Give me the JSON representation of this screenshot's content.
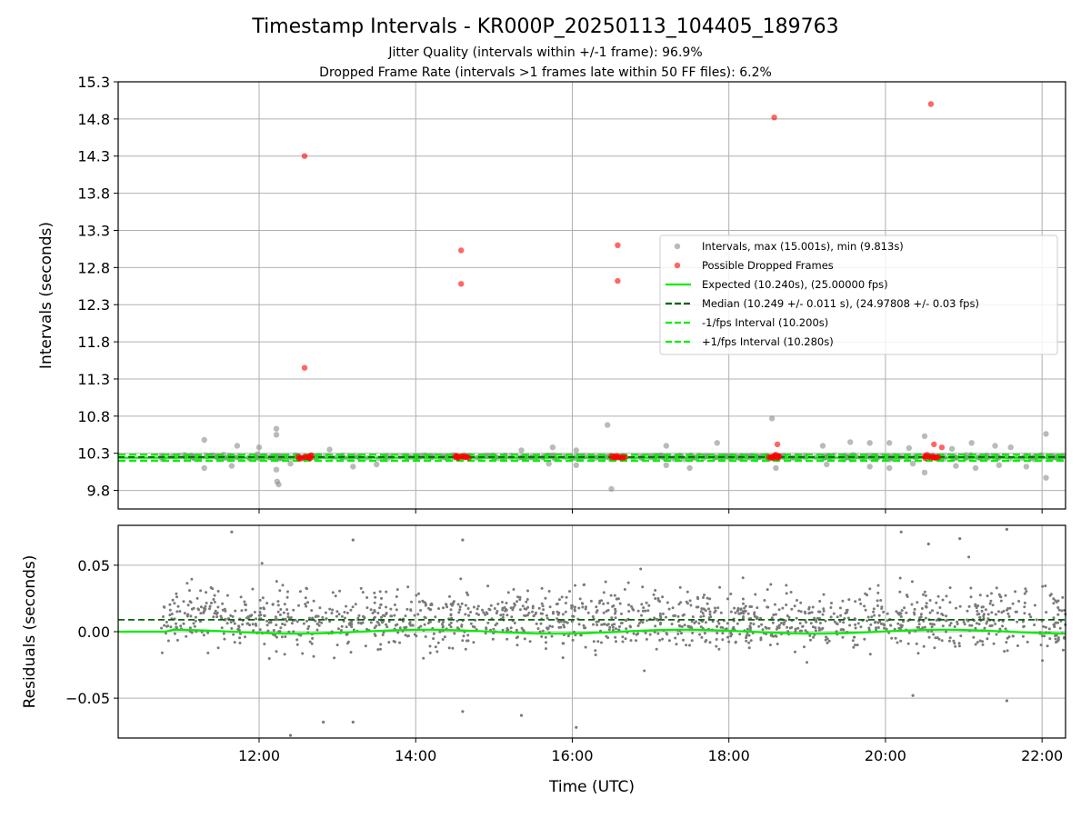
{
  "chart_data": [
    {
      "type": "scatter",
      "title": "Timestamp Intervals - KR000P_20250113_104405_189763",
      "subtitle_1": "Jitter Quality (intervals within +/-1 frame): 96.9%",
      "subtitle_2": "Dropped Frame Rate (intervals >1 frames late within 50 FF files): 6.2%",
      "ylabel": "Intervals (seconds)",
      "xlim_hours": [
        10.2,
        22.3
      ],
      "ylim": [
        9.55,
        15.3
      ],
      "yticks": [
        9.8,
        10.3,
        10.8,
        11.3,
        11.8,
        12.3,
        12.8,
        13.3,
        13.8,
        14.3,
        14.8,
        15.3
      ],
      "ytick_labels": [
        "9.8",
        "10.3",
        "10.8",
        "11.3",
        "11.8",
        "12.3",
        "12.8",
        "13.3",
        "13.8",
        "14.3",
        "14.8",
        "15.3"
      ],
      "grid": true,
      "legend_position": "center-right",
      "legend": [
        {
          "label": "Intervals, max (15.001s), min (9.813s)",
          "kind": "dot",
          "color": "#8c8c8c"
        },
        {
          "label": "Possible Dropped Frames",
          "kind": "dot",
          "color": "#ff0000"
        },
        {
          "label": "Expected (10.240s), (25.00000 fps)",
          "kind": "solid",
          "color": "#00ee00"
        },
        {
          "label": "Median (10.249 +/- 0.011 s), (24.97808 +/- 0.03 fps)",
          "kind": "dashed",
          "color": "#006400"
        },
        {
          "label": "-1/fps Interval (10.200s)",
          "kind": "dashed",
          "color": "#00ee00"
        },
        {
          "label": "+1/fps Interval (10.280s)",
          "kind": "dashed",
          "color": "#00ee00"
        }
      ],
      "lines": {
        "expected": 10.24,
        "median": 10.249,
        "minus_1fps": 10.2,
        "plus_1fps": 10.28
      },
      "data_start_hour": 10.75,
      "data_end_hour": 22.3,
      "dropped_frames": [
        {
          "x": 12.58,
          "y": 14.3
        },
        {
          "x": 12.58,
          "y": 11.45
        },
        {
          "x": 14.58,
          "y": 13.03
        },
        {
          "x": 14.58,
          "y": 12.58
        },
        {
          "x": 16.58,
          "y": 13.1
        },
        {
          "x": 16.58,
          "y": 12.62
        },
        {
          "x": 18.58,
          "y": 14.82
        },
        {
          "x": 18.62,
          "y": 10.42
        },
        {
          "x": 20.58,
          "y": 15.0
        },
        {
          "x": 20.62,
          "y": 10.42
        },
        {
          "x": 20.72,
          "y": 10.38
        }
      ],
      "gray_outliers": [
        {
          "x": 11.3,
          "y": 10.48
        },
        {
          "x": 11.3,
          "y": 10.1
        },
        {
          "x": 11.72,
          "y": 10.4
        },
        {
          "x": 11.65,
          "y": 10.13
        },
        {
          "x": 12.0,
          "y": 10.38
        },
        {
          "x": 12.22,
          "y": 10.63
        },
        {
          "x": 12.22,
          "y": 10.55
        },
        {
          "x": 12.23,
          "y": 9.92
        },
        {
          "x": 12.25,
          "y": 9.88
        },
        {
          "x": 12.22,
          "y": 10.08
        },
        {
          "x": 12.4,
          "y": 10.16
        },
        {
          "x": 12.9,
          "y": 10.35
        },
        {
          "x": 13.2,
          "y": 10.12
        },
        {
          "x": 13.5,
          "y": 10.15
        },
        {
          "x": 15.35,
          "y": 10.34
        },
        {
          "x": 15.7,
          "y": 10.16
        },
        {
          "x": 15.75,
          "y": 10.38
        },
        {
          "x": 16.05,
          "y": 10.34
        },
        {
          "x": 16.05,
          "y": 10.14
        },
        {
          "x": 16.45,
          "y": 10.68
        },
        {
          "x": 16.5,
          "y": 9.82
        },
        {
          "x": 17.2,
          "y": 10.14
        },
        {
          "x": 17.2,
          "y": 10.4
        },
        {
          "x": 17.5,
          "y": 10.1
        },
        {
          "x": 17.85,
          "y": 10.44
        },
        {
          "x": 18.55,
          "y": 10.77
        },
        {
          "x": 18.6,
          "y": 10.1
        },
        {
          "x": 19.2,
          "y": 10.4
        },
        {
          "x": 19.25,
          "y": 10.15
        },
        {
          "x": 19.55,
          "y": 10.45
        },
        {
          "x": 19.8,
          "y": 10.44
        },
        {
          "x": 19.8,
          "y": 10.12
        },
        {
          "x": 20.05,
          "y": 10.44
        },
        {
          "x": 20.05,
          "y": 10.1
        },
        {
          "x": 20.3,
          "y": 10.37
        },
        {
          "x": 20.35,
          "y": 10.16
        },
        {
          "x": 20.5,
          "y": 10.53
        },
        {
          "x": 20.5,
          "y": 10.04
        },
        {
          "x": 20.85,
          "y": 10.36
        },
        {
          "x": 20.9,
          "y": 10.13
        },
        {
          "x": 21.1,
          "y": 10.44
        },
        {
          "x": 21.15,
          "y": 10.1
        },
        {
          "x": 21.4,
          "y": 10.4
        },
        {
          "x": 21.45,
          "y": 10.14
        },
        {
          "x": 21.6,
          "y": 10.38
        },
        {
          "x": 21.8,
          "y": 10.12
        },
        {
          "x": 22.05,
          "y": 10.56
        },
        {
          "x": 22.05,
          "y": 9.97
        }
      ]
    },
    {
      "type": "scatter",
      "ylabel": "Residuals (seconds)",
      "xlabel": "Time (UTC)",
      "xlim_hours": [
        10.2,
        22.3
      ],
      "ylim": [
        -0.08,
        0.08
      ],
      "yticks": [
        -0.05,
        0.0,
        0.05
      ],
      "ytick_labels": [
        "−0.05",
        "0.00",
        "0.05"
      ],
      "xticks_hours": [
        12,
        14,
        16,
        18,
        20,
        22
      ],
      "xtick_labels": [
        "12:00",
        "14:00",
        "16:00",
        "18:00",
        "20:00",
        "22:00"
      ],
      "grid": true,
      "lines": {
        "median_residual": 0.009,
        "zero": 0.0
      },
      "residual_outliers": [
        {
          "x": 11.65,
          "y": 0.075
        },
        {
          "x": 12.4,
          "y": -0.078
        },
        {
          "x": 12.82,
          "y": -0.068
        },
        {
          "x": 13.2,
          "y": 0.069
        },
        {
          "x": 13.2,
          "y": -0.068
        },
        {
          "x": 14.6,
          "y": 0.069
        },
        {
          "x": 14.6,
          "y": -0.06
        },
        {
          "x": 15.35,
          "y": -0.063
        },
        {
          "x": 16.05,
          "y": -0.072
        },
        {
          "x": 20.2,
          "y": 0.075
        },
        {
          "x": 20.35,
          "y": -0.048
        },
        {
          "x": 20.55,
          "y": 0.066
        },
        {
          "x": 20.95,
          "y": 0.07
        },
        {
          "x": 21.55,
          "y": 0.077
        },
        {
          "x": 21.55,
          "y": -0.052
        }
      ]
    }
  ]
}
